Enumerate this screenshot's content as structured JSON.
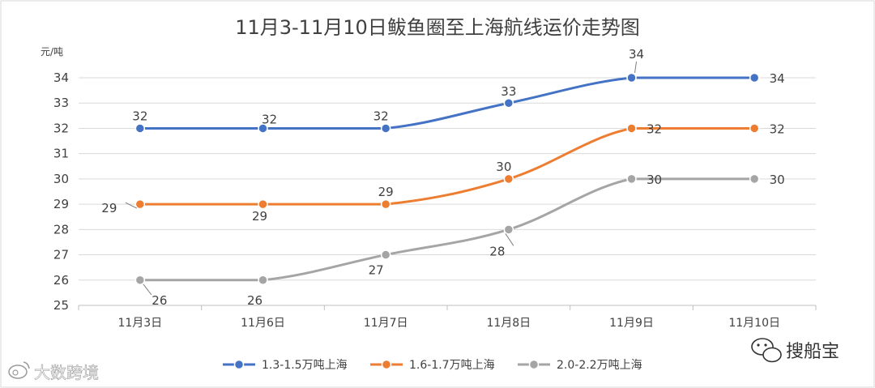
{
  "chart_data": {
    "type": "line",
    "title": "11月3-11月10日鲅鱼圈至上海航线运价走势图",
    "ylabel": "元/吨",
    "xlabel": "",
    "categories": [
      "11月3日",
      "11月6日",
      "11月7日",
      "11月8日",
      "11月9日",
      "11月10日"
    ],
    "ylim": [
      25,
      34
    ],
    "yticks": [
      25,
      26,
      27,
      28,
      29,
      30,
      31,
      32,
      33,
      34
    ],
    "grid": true,
    "legend_position": "bottom",
    "series": [
      {
        "name": "1.3-1.5万吨上海",
        "color": "#4472C4",
        "values": [
          32,
          32,
          32,
          33,
          34,
          34
        ]
      },
      {
        "name": "1.6-1.7万吨上海",
        "color": "#ED7D31",
        "values": [
          29,
          29,
          29,
          30,
          32,
          32
        ]
      },
      {
        "name": "2.0-2.2万吨上海",
        "color": "#A5A5A5",
        "values": [
          26,
          26,
          27,
          28,
          30,
          30
        ]
      }
    ]
  },
  "watermarks": {
    "left": "大数跨境",
    "right": "搜船宝"
  }
}
